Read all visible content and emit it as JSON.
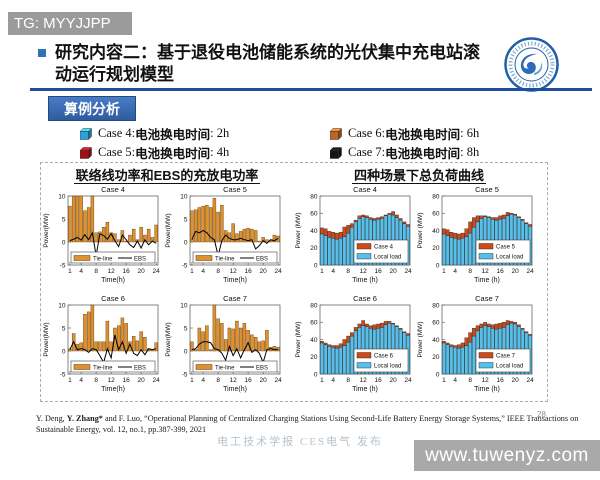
{
  "watermarks": {
    "tg": "TG: MYYJJPP",
    "site": "www.tuwenyz.com",
    "center": "电工技术学报 CES电气 发布",
    "page": "28"
  },
  "header": {
    "title": "研究内容二：基于退役电池储能系统的光伏集中充电站滚动运行规划模型",
    "section_button": "算例分析"
  },
  "case_legend": [
    {
      "prefix": "Case 4: ",
      "term": "电池换电时间",
      "suffix": ": 2h",
      "color": "#29A3D8"
    },
    {
      "prefix": "Case 5: ",
      "term": "电池换电时间",
      "suffix": ": 4h",
      "color": "#9E1217"
    },
    {
      "prefix": "Case 6: ",
      "term": "电池换电时间",
      "suffix": ": 6h",
      "color": "#BD6524"
    },
    {
      "prefix": "Case 7: ",
      "term": "电池换电时间",
      "suffix": ": 8h",
      "color": "#151515"
    }
  ],
  "chart_groups": [
    {
      "title": "联络线功率和EBS的充放电功率"
    },
    {
      "title": "四种场景下总负荷曲线"
    }
  ],
  "chart_data": [
    {
      "kind": "tie",
      "type": "bar",
      "title": "Case 4",
      "xlabel": "Time(h)",
      "ylabel": "Power(MW)",
      "ylim": [
        -5,
        10
      ],
      "yticks": [
        -5,
        0,
        5,
        10
      ],
      "xticks": [
        1,
        4,
        8,
        12,
        16,
        20,
        24
      ],
      "legend_position": "inside-bottom",
      "series": [
        {
          "name": "Tie-line",
          "type": "bar",
          "color": "#E0912F",
          "values": [
            7.8,
            10,
            10,
            10,
            6.8,
            7.5,
            10,
            2,
            2.2,
            3.2,
            4.3,
            2,
            1.8,
            0.5,
            2.5,
            0.2,
            1.5,
            2.8,
            0.5,
            3.2,
            1.5,
            2.8,
            1,
            3.7
          ]
        },
        {
          "name": "EBS",
          "type": "line",
          "color": "#000000",
          "values": [
            0.3,
            0.6,
            1,
            0.4,
            1.6,
            0.5,
            2,
            -3,
            1.8,
            1.4,
            0.6,
            1.8,
            0.3,
            -1,
            1.5,
            0.5,
            -0.6,
            -1.2,
            0.2,
            -1.3,
            0.5,
            -0.6,
            0.2,
            -0.3
          ]
        }
      ]
    },
    {
      "kind": "tie",
      "type": "bar",
      "title": "Case 5",
      "xlabel": "Time(h)",
      "ylabel": "Power(MW)",
      "ylim": [
        -5,
        10
      ],
      "yticks": [
        -5,
        0,
        5,
        10
      ],
      "xticks": [
        1,
        4,
        8,
        12,
        16,
        20,
        24
      ],
      "legend_position": "inside-bottom",
      "series": [
        {
          "name": "Tie-line",
          "type": "bar",
          "color": "#E0912F",
          "values": [
            6.8,
            7,
            7.5,
            7.8,
            8,
            7.5,
            9.5,
            6.5,
            8,
            2.5,
            2,
            4,
            1.8,
            2.3,
            2.8,
            3,
            2.8,
            2.5,
            0.2,
            1,
            0.5,
            0.3,
            1.5,
            1.3
          ]
        },
        {
          "name": "EBS",
          "type": "line",
          "color": "#000000",
          "values": [
            0.5,
            2.3,
            2,
            2.5,
            2,
            1,
            0.5,
            -3,
            0.3,
            1.5,
            0.8,
            0.5,
            0.5,
            0.8,
            0.5,
            0.3,
            0.5,
            -1.5,
            -0.8,
            0.3,
            -0.3,
            0.5,
            0.3,
            0.8
          ]
        }
      ]
    },
    {
      "kind": "tie",
      "type": "bar",
      "title": "Case 6",
      "xlabel": "Time(h)",
      "ylabel": "Power(MW)",
      "ylim": [
        -5,
        10
      ],
      "yticks": [
        -5,
        0,
        5,
        10
      ],
      "xticks": [
        1,
        4,
        8,
        12,
        16,
        20,
        24
      ],
      "legend_position": "inside-bottom",
      "series": [
        {
          "name": "Tie-line",
          "type": "bar",
          "color": "#E0912F",
          "values": [
            0.5,
            3.8,
            1.5,
            1.8,
            8,
            8.5,
            10,
            2,
            2,
            2,
            6.5,
            2,
            5,
            5.5,
            7.2,
            6,
            2,
            3.2,
            2.2,
            4.2,
            3,
            0.5,
            0.3,
            1.8
          ]
        },
        {
          "name": "EBS",
          "type": "line",
          "color": "#000000",
          "values": [
            0.3,
            2,
            0.3,
            0.5,
            0.3,
            -0.3,
            0.5,
            0.3,
            -1,
            -2.5,
            0.5,
            -1.5,
            3.5,
            0.3,
            2,
            -0.5,
            1.5,
            -0.5,
            -1,
            0.3,
            -0.8,
            0.5,
            0.3,
            0.5
          ]
        }
      ]
    },
    {
      "kind": "tie",
      "type": "bar",
      "title": "Case 7",
      "xlabel": "Time(h)",
      "ylabel": "Power(MW)",
      "ylim": [
        -5,
        10
      ],
      "yticks": [
        -5,
        0,
        5,
        10
      ],
      "xticks": [
        1,
        4,
        8,
        12,
        16,
        20,
        24
      ],
      "legend_position": "inside-bottom",
      "series": [
        {
          "name": "Tie-line",
          "type": "bar",
          "color": "#E0912F",
          "values": [
            2,
            0.3,
            5,
            4.2,
            5.5,
            0.3,
            10,
            7,
            6,
            2.5,
            5,
            4.8,
            6.5,
            5,
            6,
            4.5,
            3.5,
            3,
            2,
            2.2,
            4.5,
            0.8,
            1,
            0.8
          ]
        },
        {
          "name": "EBS",
          "type": "line",
          "color": "#000000",
          "values": [
            0.3,
            0.5,
            1.5,
            2,
            2,
            1.8,
            0.5,
            0.3,
            -0.5,
            -2,
            1,
            -1,
            0.5,
            -1.5,
            0.3,
            1.8,
            -0.3,
            0.3,
            -0.5,
            -2.5,
            0.3,
            0.5,
            0.3,
            0.3
          ]
        }
      ]
    },
    {
      "kind": "load",
      "type": "bar",
      "stacked": true,
      "title": "Case 4",
      "xlabel": "Time (h)",
      "ylabel": "Power (MW)",
      "ylim": [
        0,
        80
      ],
      "yticks": [
        0,
        20,
        40,
        60,
        80
      ],
      "xticks": [
        1,
        4,
        8,
        12,
        16,
        20,
        24
      ],
      "legend_position": "inside-bottom-right",
      "series": [
        {
          "name": "Case 4",
          "color": "#CE4A18",
          "values": [
            43,
            42,
            39,
            38,
            37,
            38,
            44,
            46,
            48,
            52,
            57,
            58,
            57,
            55,
            54,
            55,
            56,
            58,
            60,
            62,
            58,
            54,
            50,
            47
          ]
        },
        {
          "name": "Local load",
          "color": "#56BFEA",
          "values": [
            36,
            34,
            32,
            31,
            30,
            31,
            33,
            37,
            44,
            50,
            54,
            56,
            55,
            53,
            52,
            53,
            54,
            57,
            59,
            58,
            55,
            52,
            48,
            45
          ]
        }
      ]
    },
    {
      "kind": "load",
      "type": "bar",
      "stacked": true,
      "title": "Case 5",
      "xlabel": "Time (h)",
      "ylabel": "Power (MW)",
      "ylim": [
        0,
        80
      ],
      "yticks": [
        0,
        20,
        40,
        60,
        80
      ],
      "xticks": [
        1,
        4,
        8,
        12,
        16,
        20,
        24
      ],
      "legend_position": "inside-bottom-right",
      "series": [
        {
          "name": "Case 5",
          "color": "#CE4A18",
          "values": [
            42,
            41,
            38,
            37,
            36,
            37,
            42,
            50,
            55,
            57,
            57,
            57,
            56,
            55,
            55,
            57,
            58,
            61,
            60,
            59,
            56,
            53,
            49,
            47
          ]
        },
        {
          "name": "Local load",
          "color": "#56BFEA",
          "values": [
            36,
            34,
            32,
            31,
            30,
            31,
            33,
            37,
            44,
            50,
            54,
            56,
            55,
            53,
            52,
            53,
            54,
            57,
            59,
            58,
            55,
            52,
            48,
            45
          ]
        }
      ]
    },
    {
      "kind": "load",
      "type": "bar",
      "stacked": true,
      "title": "Case 6",
      "xlabel": "Time (h)",
      "ylabel": "Power (MW)",
      "ylim": [
        0,
        80
      ],
      "yticks": [
        0,
        20,
        40,
        60,
        80
      ],
      "xticks": [
        1,
        4,
        8,
        12,
        16,
        20,
        24
      ],
      "legend_position": "inside-bottom-right",
      "series": [
        {
          "name": "Case 6",
          "color": "#CE4A18",
          "values": [
            38,
            36,
            34,
            33,
            33,
            35,
            40,
            44,
            48,
            54,
            58,
            62,
            58,
            56,
            57,
            58,
            59,
            61,
            61,
            59,
            56,
            53,
            49,
            47
          ]
        },
        {
          "name": "Local load",
          "color": "#56BFEA",
          "values": [
            36,
            34,
            32,
            31,
            30,
            31,
            33,
            37,
            44,
            50,
            54,
            56,
            55,
            53,
            52,
            53,
            54,
            57,
            59,
            58,
            55,
            52,
            48,
            45
          ]
        }
      ]
    },
    {
      "kind": "load",
      "type": "bar",
      "stacked": true,
      "title": "Case 7",
      "xlabel": "Time (h)",
      "ylabel": "Power (MW)",
      "ylim": [
        0,
        80
      ],
      "yticks": [
        0,
        20,
        40,
        60,
        80
      ],
      "xticks": [
        1,
        4,
        8,
        12,
        16,
        20,
        24
      ],
      "legend_position": "inside-bottom-right",
      "series": [
        {
          "name": "Case 7",
          "color": "#CE4A18",
          "values": [
            38,
            36,
            34,
            33,
            34,
            36,
            42,
            48,
            53,
            56,
            58,
            60,
            58,
            57,
            58,
            59,
            60,
            62,
            61,
            60,
            57,
            53,
            49,
            46
          ]
        },
        {
          "name": "Local load",
          "color": "#56BFEA",
          "values": [
            36,
            34,
            32,
            31,
            30,
            31,
            33,
            37,
            44,
            50,
            54,
            56,
            55,
            53,
            52,
            53,
            54,
            57,
            59,
            58,
            55,
            52,
            48,
            45
          ]
        }
      ]
    }
  ],
  "citation": {
    "pre": "Y. Deng, ",
    "bold": "Y. Zhang*",
    "rest": " and F. Luo, “Operational Planning of Centralized Charging Stations Using Second-Life Battery Energy Storage Systems,” IEEE Transactions on Sustainable Energy, vol. 12, no.1,  pp.387-399, 2021"
  }
}
